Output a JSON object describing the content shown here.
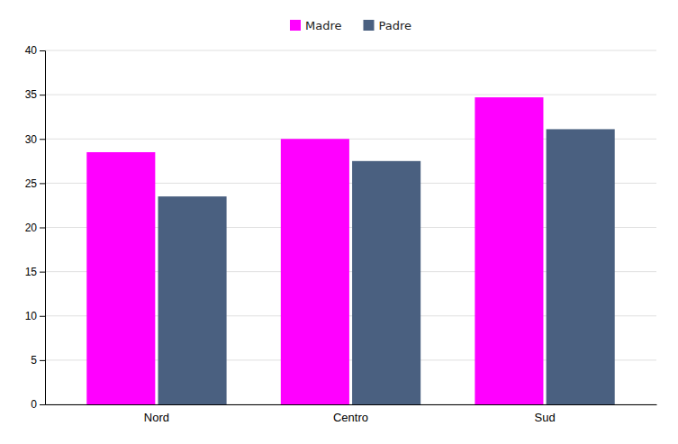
{
  "chart_data": {
    "type": "bar",
    "categories": [
      "Nord",
      "Centro",
      "Sud"
    ],
    "series": [
      {
        "name": "Madre",
        "color": "#FF00FF",
        "values": [
          28.5,
          30.0,
          34.7
        ]
      },
      {
        "name": "Padre",
        "color": "#4A6080",
        "values": [
          23.5,
          27.5,
          31.1
        ]
      }
    ],
    "ylim": [
      0,
      40
    ],
    "yticks": [
      0,
      5,
      10,
      15,
      20,
      25,
      30,
      35,
      40
    ],
    "grid": true,
    "legend": "top"
  }
}
